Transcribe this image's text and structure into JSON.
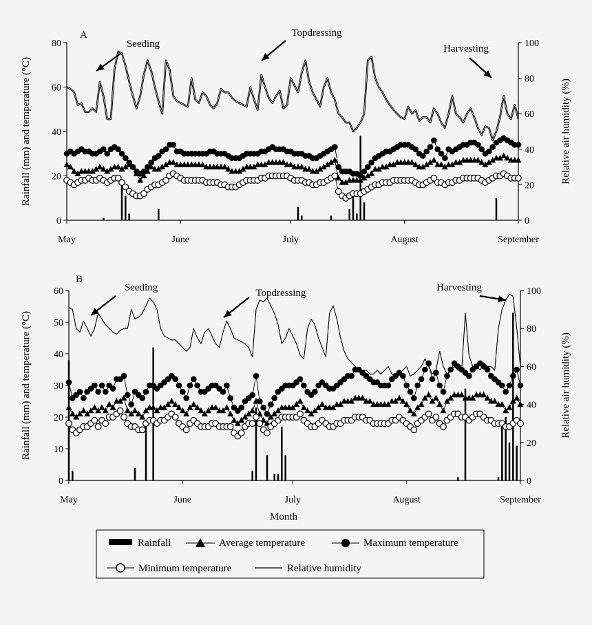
{
  "colors": {
    "background": "#f4f4f4",
    "ink": "#000000"
  },
  "xlabel": "Month",
  "legend": {
    "placement": "bottom-center",
    "entries": [
      {
        "label": "Rainfall",
        "marker": "bar"
      },
      {
        "label": "Average temperature",
        "marker": "triangle"
      },
      {
        "label": "Maximum temperature",
        "marker": "filled-circle"
      },
      {
        "label": "Minimum temperature",
        "marker": "open-circle"
      },
      {
        "label": "Relative humidity",
        "marker": "line"
      }
    ]
  },
  "chart_data": [
    {
      "panel": "A",
      "type": "line",
      "ylabel_left": "Rainfall (mm) and temperature (°C)",
      "ylabel_right": "Relative air humidity (%)",
      "ylim_left": [
        0,
        80
      ],
      "ylim_right": [
        0,
        100
      ],
      "yticks_left": [
        0,
        20,
        40,
        60,
        80
      ],
      "yticks_right": [
        0,
        20,
        40,
        60,
        80,
        100
      ],
      "month_ticks": [
        {
          "label": "May",
          "day": 0
        },
        {
          "label": "June",
          "day": 31
        },
        {
          "label": "July",
          "day": 61
        },
        {
          "label": "August",
          "day": 92
        },
        {
          "label": "September",
          "day": 123
        }
      ],
      "annotations": [
        {
          "text": "Seeding",
          "day": 8
        },
        {
          "text": "Topdressing",
          "day": 53
        },
        {
          "text": "Harvesting",
          "day": 118
        }
      ],
      "rainfall": [
        {
          "day": 10,
          "mm": 1
        },
        {
          "day": 15,
          "mm": 17
        },
        {
          "day": 16,
          "mm": 11
        },
        {
          "day": 17,
          "mm": 3
        },
        {
          "day": 25,
          "mm": 5
        },
        {
          "day": 63,
          "mm": 6
        },
        {
          "day": 64,
          "mm": 2
        },
        {
          "day": 72,
          "mm": 2
        },
        {
          "day": 77,
          "mm": 5
        },
        {
          "day": 78,
          "mm": 13
        },
        {
          "day": 79,
          "mm": 3
        },
        {
          "day": 80,
          "mm": 38
        },
        {
          "day": 81,
          "mm": 8
        },
        {
          "day": 117,
          "mm": 10
        }
      ],
      "humidity": [
        75,
        74,
        72,
        65,
        66,
        61,
        61,
        63,
        61,
        78,
        70,
        57,
        57,
        85,
        95,
        94,
        87,
        78,
        70,
        63,
        70,
        82,
        90,
        84,
        75,
        67,
        60,
        90,
        85,
        70,
        67,
        66,
        65,
        64,
        80,
        68,
        66,
        72,
        70,
        65,
        63,
        66,
        74,
        72,
        72,
        69,
        67,
        66,
        65,
        64,
        75,
        68,
        62,
        82,
        75,
        69,
        66,
        70,
        73,
        63,
        65,
        80,
        76,
        72,
        83,
        90,
        78,
        72,
        68,
        64,
        75,
        80,
        72,
        68,
        60,
        58,
        55,
        55,
        50,
        52,
        55,
        60,
        90,
        92,
        80,
        75,
        72,
        68,
        65,
        62,
        60,
        58,
        57,
        64,
        60,
        62,
        56,
        58,
        58,
        55,
        63,
        60,
        55,
        52,
        60,
        70,
        60,
        58,
        55,
        60,
        63,
        58,
        52,
        48,
        53,
        52,
        45,
        50,
        58,
        70,
        60,
        57,
        65,
        57
      ],
      "tmax": [
        30,
        31,
        30,
        31,
        32,
        31,
        31,
        30,
        30,
        31,
        32,
        30,
        32,
        33,
        32,
        30,
        28,
        26,
        24,
        22,
        21,
        22,
        24,
        26,
        28,
        29,
        31,
        32,
        34,
        34,
        31,
        31,
        30,
        30,
        30,
        30,
        30,
        30,
        30,
        31,
        31,
        30,
        30,
        30,
        29,
        28,
        28,
        28,
        29,
        30,
        30,
        30,
        30,
        31,
        31,
        32,
        33,
        32,
        32,
        32,
        31,
        31,
        30,
        30,
        30,
        29,
        29,
        28,
        28,
        29,
        30,
        31,
        32,
        33,
        24,
        22,
        22,
        22,
        21,
        21,
        20,
        22,
        24,
        26,
        28,
        29,
        30,
        31,
        31,
        32,
        33,
        34,
        34,
        34,
        33,
        32,
        30,
        29,
        31,
        33,
        36,
        32,
        30,
        28,
        32,
        31,
        32,
        33,
        34,
        34,
        35,
        35,
        34,
        32,
        30,
        31,
        33,
        35,
        36,
        37,
        36,
        35,
        34,
        34
      ],
      "tavg": [
        25,
        24,
        22,
        21,
        22,
        22,
        22,
        22,
        23,
        24,
        23,
        22,
        23,
        24,
        24,
        23,
        24,
        25,
        24,
        21,
        18,
        20,
        22,
        24,
        23,
        23,
        24,
        25,
        26,
        26,
        25,
        25,
        25,
        25,
        25,
        25,
        25,
        25,
        24,
        24,
        24,
        24,
        24,
        24,
        23,
        22,
        22,
        22,
        23,
        24,
        24,
        24,
        25,
        25,
        25,
        26,
        26,
        26,
        26,
        26,
        25,
        25,
        24,
        24,
        24,
        23,
        23,
        22,
        22,
        23,
        24,
        25,
        26,
        27,
        19,
        17,
        17,
        18,
        18,
        18,
        18,
        19,
        20,
        21,
        23,
        23,
        24,
        24,
        25,
        25,
        26,
        26,
        26,
        26,
        26,
        25,
        24,
        24,
        25,
        26,
        27,
        25,
        25,
        24,
        25,
        25,
        26,
        26,
        27,
        27,
        27,
        27,
        27,
        26,
        25,
        26,
        27,
        28,
        28,
        29,
        28,
        27,
        27,
        27
      ],
      "tmin": [
        18,
        17,
        16,
        17,
        18,
        18,
        19,
        18,
        18,
        19,
        18,
        17,
        18,
        19,
        19,
        17,
        15,
        13,
        12,
        11,
        11,
        12,
        14,
        15,
        16,
        16,
        17,
        18,
        20,
        21,
        20,
        19,
        18,
        18,
        18,
        18,
        18,
        18,
        17,
        17,
        17,
        17,
        16,
        16,
        15,
        15,
        15,
        16,
        17,
        18,
        18,
        18,
        18,
        19,
        19,
        20,
        20,
        20,
        20,
        20,
        20,
        19,
        18,
        18,
        18,
        17,
        17,
        16,
        16,
        17,
        17,
        18,
        19,
        20,
        13,
        11,
        10,
        11,
        12,
        12,
        12,
        13,
        14,
        15,
        16,
        16,
        17,
        17,
        17,
        18,
        18,
        18,
        18,
        18,
        18,
        17,
        16,
        16,
        17,
        18,
        19,
        17,
        17,
        16,
        17,
        17,
        18,
        18,
        19,
        19,
        19,
        19,
        19,
        18,
        17,
        18,
        19,
        20,
        20,
        21,
        20,
        19,
        19,
        19
      ]
    },
    {
      "panel": "B",
      "type": "line",
      "ylabel_left": "Rainfall (mm) and  temperature (°C)",
      "ylabel_right": "Relative air humidity (%)",
      "ylim_left": [
        0,
        60
      ],
      "ylim_right": [
        0,
        100
      ],
      "yticks_left": [
        0,
        10,
        20,
        30,
        40,
        50,
        60
      ],
      "yticks_right": [
        0,
        20,
        40,
        60,
        80,
        100
      ],
      "month_ticks": [
        {
          "label": "May",
          "day": 0
        },
        {
          "label": "June",
          "day": 31
        },
        {
          "label": "July",
          "day": 61
        },
        {
          "label": "August",
          "day": 92
        },
        {
          "label": "September",
          "day": 123
        }
      ],
      "annotations": [
        {
          "text": "Seeding",
          "day": 6
        },
        {
          "text": "Topdressing",
          "day": 43
        },
        {
          "text": "Harvesting",
          "day": 123
        }
      ],
      "rainfall": [
        {
          "day": 0,
          "mm": 38
        },
        {
          "day": 1,
          "mm": 3
        },
        {
          "day": 18,
          "mm": 4
        },
        {
          "day": 21,
          "mm": 17
        },
        {
          "day": 23,
          "mm": 42
        },
        {
          "day": 50,
          "mm": 3
        },
        {
          "day": 51,
          "mm": 23
        },
        {
          "day": 54,
          "mm": 8
        },
        {
          "day": 56,
          "mm": 2
        },
        {
          "day": 57,
          "mm": 2
        },
        {
          "day": 58,
          "mm": 17
        },
        {
          "day": 59,
          "mm": 8
        },
        {
          "day": 106,
          "mm": 1
        },
        {
          "day": 108,
          "mm": 29
        },
        {
          "day": 117,
          "mm": 1
        },
        {
          "day": 118,
          "mm": 18
        },
        {
          "day": 119,
          "mm": 20
        },
        {
          "day": 120,
          "mm": 12
        },
        {
          "day": 121,
          "mm": 53
        },
        {
          "day": 122,
          "mm": 11
        }
      ],
      "humidity": [
        91,
        90,
        80,
        78,
        84,
        80,
        76,
        80,
        88,
        85,
        82,
        80,
        78,
        77,
        79,
        80,
        80,
        90,
        85,
        86,
        88,
        92,
        96,
        94,
        90,
        80,
        76,
        75,
        74,
        74,
        72,
        70,
        68,
        70,
        80,
        75,
        72,
        78,
        80,
        76,
        72,
        70,
        78,
        84,
        80,
        75,
        74,
        73,
        72,
        70,
        65,
        90,
        95,
        94,
        96,
        92,
        88,
        82,
        72,
        75,
        80,
        76,
        72,
        66,
        64,
        80,
        85,
        82,
        75,
        70,
        65,
        88,
        92,
        85,
        75,
        68,
        64,
        62,
        60,
        58,
        58,
        58,
        56,
        56,
        58,
        56,
        58,
        60,
        56,
        55,
        56,
        58,
        60,
        55,
        56,
        58,
        60,
        64,
        60,
        56,
        58,
        68,
        60,
        56,
        58,
        60,
        58,
        58,
        88,
        66,
        60,
        60,
        58,
        62,
        60,
        60,
        58,
        80,
        90,
        95,
        98,
        97,
        80,
        60
      ],
      "tmax": [
        31,
        26,
        27,
        28,
        26,
        28,
        29,
        30,
        28,
        30,
        28,
        30,
        29,
        32,
        32,
        33,
        27,
        24,
        28,
        27,
        26,
        28,
        30,
        30,
        29,
        30,
        31,
        32,
        33,
        32,
        30,
        28,
        26,
        30,
        32,
        30,
        28,
        28,
        29,
        30,
        30,
        29,
        28,
        30,
        26,
        23,
        22,
        23,
        25,
        26,
        27,
        33,
        25,
        23,
        21,
        24,
        26,
        28,
        29,
        30,
        30,
        30,
        31,
        32,
        30,
        28,
        27,
        28,
        30,
        31,
        30,
        29,
        29,
        30,
        31,
        32,
        33,
        33,
        35,
        35,
        34,
        33,
        32,
        31,
        31,
        30,
        30,
        30,
        32,
        33,
        34,
        33,
        30,
        28,
        26,
        30,
        32,
        35,
        37,
        32,
        34,
        30,
        28,
        33,
        35,
        37,
        36,
        35,
        34,
        33,
        35,
        36,
        37,
        36,
        35,
        33,
        32,
        31,
        30,
        28,
        30,
        33,
        35,
        30
      ],
      "tavg": [
        23,
        21,
        20,
        21,
        22,
        21,
        22,
        23,
        22,
        23,
        22,
        24,
        23,
        25,
        25,
        26,
        22,
        21,
        22,
        21,
        20,
        22,
        23,
        23,
        22,
        23,
        23,
        24,
        25,
        24,
        23,
        22,
        21,
        23,
        24,
        23,
        22,
        21,
        22,
        23,
        23,
        22,
        22,
        23,
        21,
        19,
        18,
        19,
        20,
        21,
        22,
        25,
        21,
        19,
        18,
        20,
        21,
        22,
        23,
        23,
        23,
        23,
        24,
        25,
        23,
        22,
        21,
        22,
        23,
        24,
        23,
        23,
        23,
        24,
        24,
        25,
        25,
        25,
        26,
        26,
        26,
        25,
        25,
        24,
        24,
        24,
        24,
        24,
        25,
        25,
        26,
        25,
        24,
        22,
        21,
        23,
        24,
        26,
        27,
        25,
        26,
        24,
        22,
        25,
        26,
        27,
        27,
        27,
        26,
        26,
        26,
        27,
        27,
        27,
        26,
        25,
        25,
        24,
        24,
        22,
        23,
        25,
        26,
        24
      ],
      "tmin": [
        18,
        16,
        15,
        16,
        17,
        17,
        18,
        19,
        17,
        19,
        18,
        20,
        20,
        21,
        22,
        20,
        18,
        17,
        17,
        16,
        16,
        18,
        19,
        19,
        18,
        19,
        19,
        20,
        21,
        20,
        18,
        17,
        16,
        18,
        19,
        18,
        17,
        17,
        17,
        18,
        18,
        17,
        17,
        17,
        17,
        15,
        14,
        15,
        17,
        18,
        18,
        20,
        18,
        16,
        15,
        17,
        18,
        19,
        20,
        20,
        20,
        20,
        20,
        21,
        19,
        18,
        17,
        17,
        18,
        19,
        18,
        17,
        17,
        18,
        18,
        19,
        19,
        19,
        20,
        20,
        20,
        19,
        19,
        18,
        18,
        18,
        18,
        18,
        19,
        19,
        20,
        19,
        18,
        17,
        16,
        18,
        19,
        20,
        21,
        19,
        20,
        18,
        17,
        19,
        20,
        21,
        21,
        20,
        20,
        19,
        20,
        21,
        21,
        20,
        19,
        19,
        18,
        18,
        18,
        17,
        17,
        18,
        19,
        18
      ]
    }
  ]
}
